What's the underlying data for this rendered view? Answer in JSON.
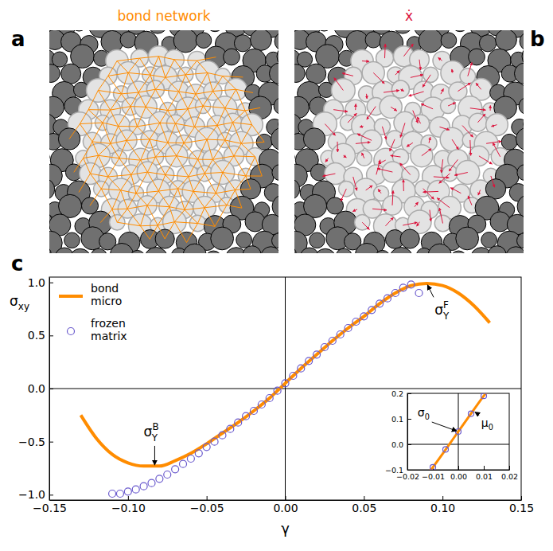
{
  "panels": [
    {
      "label": "a",
      "title": "bond network",
      "title_color": "#ff8c00"
    },
    {
      "label": "b",
      "title": "ẋ",
      "title_color": "#dc143c"
    }
  ],
  "chart_data": {
    "type": "line",
    "panel_label": "c",
    "x_label": "γ",
    "y_label": {
      "text": "σ",
      "sub": "xy"
    },
    "xlim": [
      -0.15,
      0.15
    ],
    "ylim": [
      -1.05,
      1.05
    ],
    "xticks": [
      {
        "value": -0.15,
        "label": "−0.15"
      },
      {
        "value": -0.1,
        "label": "−0.10"
      },
      {
        "value": -0.05,
        "label": "−0.05"
      },
      {
        "value": 0,
        "label": "0.00"
      },
      {
        "value": 0.05,
        "label": "0.05"
      },
      {
        "value": 0.1,
        "label": "0.10"
      },
      {
        "value": 0.15,
        "label": "0.15"
      }
    ],
    "yticks": [
      {
        "value": -1,
        "label": "−1.0"
      },
      {
        "value": -0.5,
        "label": "−0.5"
      },
      {
        "value": 0,
        "label": "0.0"
      },
      {
        "value": 0.5,
        "label": "0.5"
      },
      {
        "value": 1,
        "label": "1.0"
      }
    ],
    "legend": "upper left",
    "series": [
      {
        "name": "bond micro",
        "type": "line",
        "color": "#ff8c00",
        "x": [
          -0.13,
          -0.12,
          -0.11,
          -0.1,
          -0.09,
          -0.08,
          -0.07,
          -0.06,
          -0.05,
          -0.04,
          -0.03,
          -0.02,
          -0.01,
          0,
          0.01,
          0.02,
          0.03,
          0.04,
          0.05,
          0.06,
          0.07,
          0.08,
          0.09,
          0.1,
          0.11,
          0.12,
          0.13
        ],
        "values": [
          -0.25,
          -0.47,
          -0.62,
          -0.7,
          -0.73,
          -0.73,
          -0.68,
          -0.61,
          -0.52,
          -0.42,
          -0.32,
          -0.21,
          -0.09,
          0.05,
          0.19,
          0.32,
          0.45,
          0.57,
          0.68,
          0.8,
          0.9,
          0.97,
          0.99,
          0.97,
          0.9,
          0.78,
          0.62
        ]
      },
      {
        "name": "frozen matrix",
        "type": "scatter",
        "marker": "open-circle",
        "color": "#6a5acd",
        "x": [
          -0.11,
          -0.105,
          -0.1,
          -0.095,
          -0.09,
          -0.085,
          -0.08,
          -0.075,
          -0.07,
          -0.065,
          -0.06,
          -0.055,
          -0.05,
          -0.045,
          -0.04,
          -0.035,
          -0.03,
          -0.025,
          -0.02,
          -0.015,
          -0.01,
          -0.005,
          0,
          0.005,
          0.01,
          0.015,
          0.02,
          0.025,
          0.03,
          0.035,
          0.04,
          0.045,
          0.05,
          0.055,
          0.06,
          0.065,
          0.07,
          0.075,
          0.08,
          0.085
        ],
        "values": [
          -0.99,
          -0.99,
          -0.97,
          -0.95,
          -0.92,
          -0.89,
          -0.85,
          -0.81,
          -0.76,
          -0.71,
          -0.66,
          -0.61,
          -0.55,
          -0.5,
          -0.44,
          -0.38,
          -0.32,
          -0.26,
          -0.21,
          -0.15,
          -0.09,
          -0.02,
          0.05,
          0.12,
          0.19,
          0.26,
          0.32,
          0.39,
          0.45,
          0.51,
          0.57,
          0.63,
          0.68,
          0.74,
          0.8,
          0.85,
          0.9,
          0.95,
          0.98,
          0.9
        ]
      }
    ],
    "annotations": [
      {
        "text": "σ",
        "sub": "Y",
        "sup": "F",
        "xy": [
          0.09,
          0.99
        ],
        "xytext": [
          0.095,
          0.7
        ]
      },
      {
        "text": "σ",
        "sub": "Y",
        "sup": "B",
        "xy": [
          -0.083,
          -0.735
        ],
        "xytext": [
          -0.09,
          -0.45
        ]
      }
    ],
    "inset": {
      "xlim": [
        -0.02,
        0.02
      ],
      "ylim": [
        -0.1,
        0.2
      ],
      "xticks": [
        {
          "value": -0.02,
          "label": "−0.02"
        },
        {
          "value": -0.01,
          "label": "−0.01"
        },
        {
          "value": 0,
          "label": "0.00"
        },
        {
          "value": 0.01,
          "label": "0.01"
        },
        {
          "value": 0.02,
          "label": "0.02"
        }
      ],
      "yticks": [
        {
          "value": -0.1,
          "label": "−0.1"
        },
        {
          "value": 0,
          "label": "0.0"
        },
        {
          "value": 0.1,
          "label": "0.1"
        },
        {
          "value": 0.2,
          "label": "0.2"
        }
      ],
      "annotations": [
        {
          "text": "σ",
          "sub": "0",
          "xy": [
            0,
            0.05
          ],
          "xytext": [
            -0.016,
            0.11
          ]
        },
        {
          "text": "μ",
          "sub": "0",
          "xy": [
            0.006,
            0.13
          ],
          "xytext": [
            0.009,
            0.07
          ]
        }
      ]
    }
  }
}
